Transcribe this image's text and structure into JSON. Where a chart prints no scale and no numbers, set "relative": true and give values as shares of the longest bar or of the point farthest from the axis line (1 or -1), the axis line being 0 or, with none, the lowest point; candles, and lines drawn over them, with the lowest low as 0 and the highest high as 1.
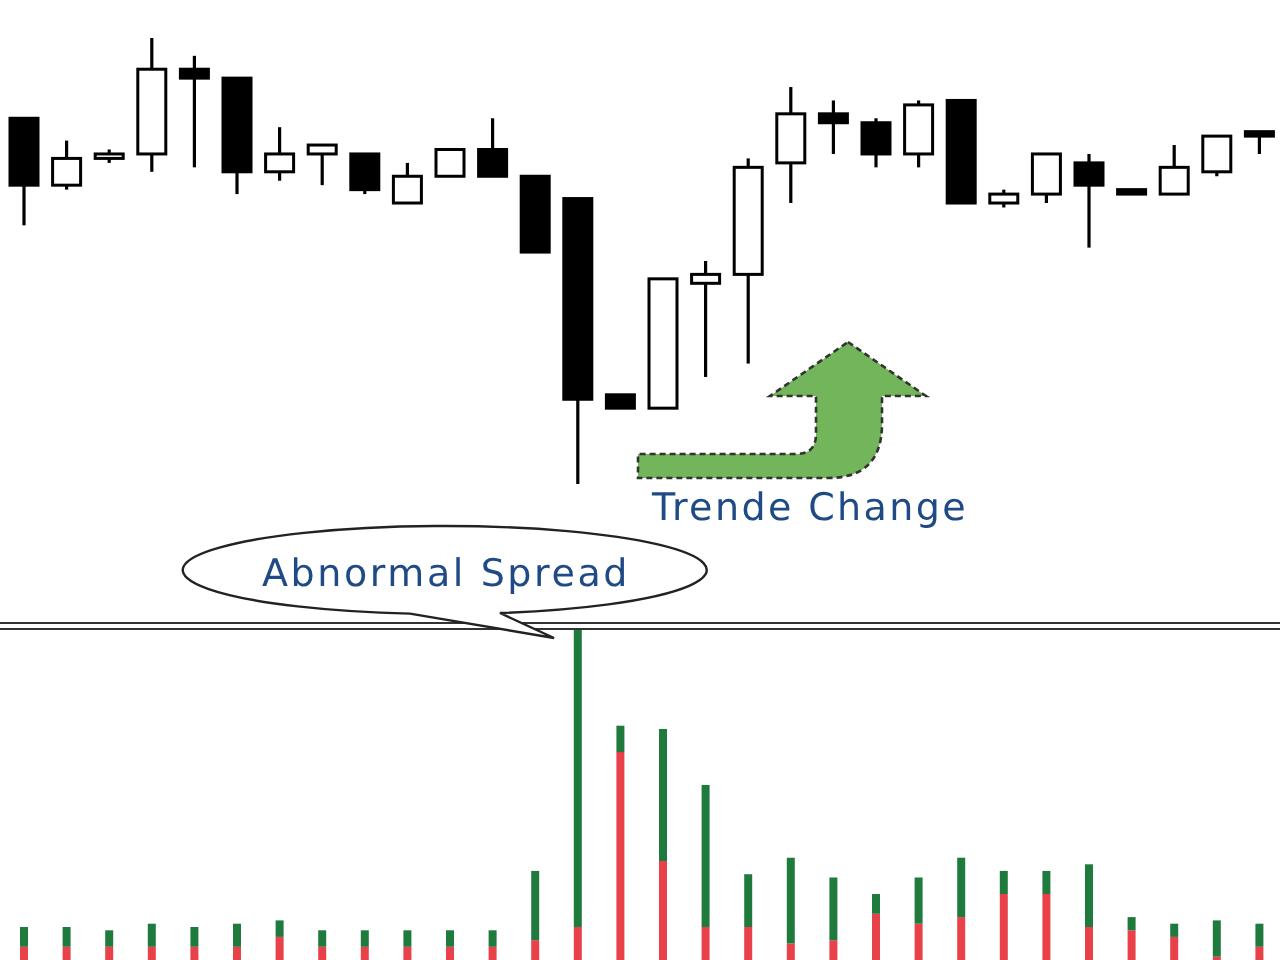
{
  "chart_data": [
    {
      "type": "candlestick",
      "relative": true,
      "categories": [
        null,
        null,
        null,
        null,
        null,
        null,
        null,
        null,
        null,
        null,
        null,
        null,
        null,
        null,
        null,
        null,
        null,
        null,
        null,
        null,
        null,
        null,
        null,
        null,
        null,
        null,
        null,
        null,
        null,
        null
      ],
      "ohlc": [
        [
          0.82,
          0.82,
          0.58,
          0.67
        ],
        [
          0.67,
          0.77,
          0.66,
          0.73
        ],
        [
          0.73,
          0.75,
          0.72,
          0.74
        ],
        [
          0.74,
          1,
          0.7,
          0.93
        ],
        [
          0.93,
          0.96,
          0.71,
          0.91
        ],
        [
          0.91,
          0.91,
          0.65,
          0.7
        ],
        [
          0.7,
          0.8,
          0.68,
          0.74
        ],
        [
          0.74,
          0.76,
          0.67,
          0.76
        ],
        [
          0.74,
          0.74,
          0.65,
          0.66
        ],
        [
          0.63,
          0.72,
          0.63,
          0.69
        ],
        [
          0.69,
          0.75,
          0.69,
          0.75
        ],
        [
          0.75,
          0.82,
          0.69,
          0.69
        ],
        [
          0.69,
          0.69,
          0.52,
          0.52
        ],
        [
          0.64,
          0.64,
          0,
          0.19
        ],
        [
          0.2,
          0.2,
          0.17,
          0.17
        ],
        [
          0.17,
          0.46,
          0.17,
          0.46
        ],
        [
          0.45,
          0.5,
          0.24,
          0.47
        ],
        [
          0.47,
          0.73,
          0.27,
          0.71
        ],
        [
          0.72,
          0.89,
          0.63,
          0.83
        ],
        [
          0.83,
          0.86,
          0.74,
          0.81
        ],
        [
          0.81,
          0.82,
          0.71,
          0.74
        ],
        [
          0.74,
          0.86,
          0.71,
          0.85
        ],
        [
          0.86,
          0.86,
          0.63,
          0.63
        ],
        [
          0.63,
          0.66,
          0.62,
          0.65
        ],
        [
          0.65,
          0.74,
          0.63,
          0.74
        ],
        [
          0.72,
          0.74,
          0.53,
          0.67
        ],
        [
          0.66,
          0.66,
          0.65,
          0.65
        ],
        [
          0.65,
          0.76,
          0.65,
          0.71
        ],
        [
          0.7,
          0.78,
          0.69,
          0.78
        ],
        [
          0.79,
          0.79,
          0.74,
          0.78
        ]
      ],
      "annotations": [
        "Trende Change"
      ]
    },
    {
      "type": "bar",
      "relative": true,
      "stacked": true,
      "categories": [
        null,
        null,
        null,
        null,
        null,
        null,
        null,
        null,
        null,
        null,
        null,
        null,
        null,
        null,
        null,
        null,
        null,
        null,
        null,
        null,
        null,
        null,
        null,
        null,
        null,
        null,
        null,
        null,
        null,
        null
      ],
      "series": [
        {
          "color": "#e8414a",
          "values": [
            0.04,
            0.04,
            0.04,
            0.04,
            0.04,
            0.04,
            0.07,
            0.04,
            0.04,
            0.04,
            0.04,
            0.04,
            0.06,
            0.1,
            0.63,
            0.3,
            0.1,
            0.1,
            0.05,
            0.06,
            0.14,
            0.11,
            0.13,
            0.2,
            0.2,
            0.1,
            0.09,
            0.07,
            0.01,
            0.04
          ]
        },
        {
          "color": "#1f7a3d",
          "values": [
            0.06,
            0.06,
            0.05,
            0.07,
            0.06,
            0.07,
            0.05,
            0.05,
            0.05,
            0.05,
            0.05,
            0.05,
            0.21,
            0.9,
            0.08,
            0.4,
            0.43,
            0.16,
            0.26,
            0.19,
            0.06,
            0.14,
            0.18,
            0.07,
            0.07,
            0.19,
            0.04,
            0.04,
            0.11,
            0.07
          ]
        }
      ],
      "annotations": [
        "Abnormal Spread"
      ]
    }
  ]
}
